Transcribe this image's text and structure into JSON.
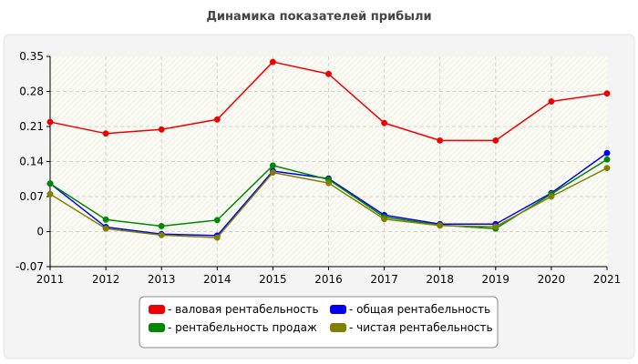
{
  "chart_data": {
    "type": "line",
    "title": "Динамика показателей прибыли",
    "xlabel": "",
    "ylabel": "",
    "categories": [
      "2011",
      "2012",
      "2013",
      "2014",
      "2015",
      "2016",
      "2017",
      "2018",
      "2019",
      "2020",
      "2021"
    ],
    "ylim": [
      -0.07,
      0.35
    ],
    "yticks": [
      -0.07,
      0,
      0.07,
      0.14,
      0.21,
      0.28,
      0.35
    ],
    "ytick_labels": [
      "-0.07",
      "0",
      "0.07",
      "0.14",
      "0.21",
      "0.28",
      "0.35"
    ],
    "grid": true,
    "legend_position": "bottom",
    "series": [
      {
        "name": "- валовая рентабельность",
        "color": "#ee0000",
        "values": [
          0.219,
          0.196,
          0.204,
          0.224,
          0.339,
          0.315,
          0.217,
          0.182,
          0.182,
          0.26,
          0.276
        ]
      },
      {
        "name": "- общая рентабельность",
        "color": "#0000ee",
        "values": [
          0.096,
          0.009,
          -0.005,
          -0.008,
          0.121,
          0.106,
          0.033,
          0.015,
          0.015,
          0.077,
          0.157
        ]
      },
      {
        "name": "- рентабельность продаж",
        "color": "#008800",
        "values": [
          0.096,
          0.024,
          0.011,
          0.023,
          0.132,
          0.104,
          0.029,
          0.013,
          0.006,
          0.075,
          0.144
        ]
      },
      {
        "name": "- чистая рентабельность",
        "color": "#808000",
        "values": [
          0.075,
          0.006,
          -0.007,
          -0.012,
          0.118,
          0.097,
          0.025,
          0.012,
          0.01,
          0.07,
          0.127
        ]
      }
    ]
  }
}
